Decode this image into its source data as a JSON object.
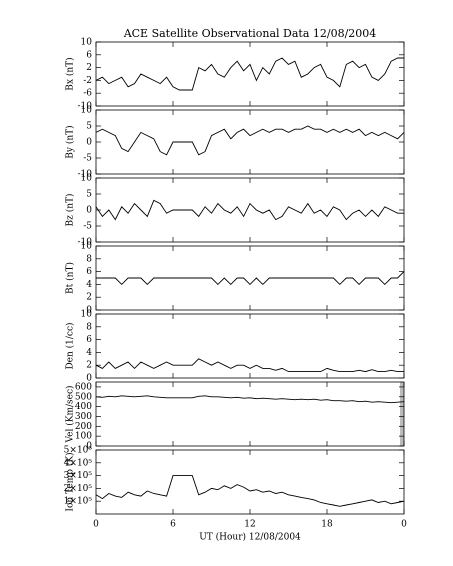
{
  "chart_data": [
    {
      "type": "line",
      "title": "ACE Satellite Observational Data   12/08/2004",
      "ylabel": "Bx (nT)",
      "color": "#000000",
      "x": [
        0,
        0.5,
        1,
        1.5,
        2,
        2.5,
        3,
        3.5,
        4,
        4.5,
        5,
        5.5,
        6,
        6.5,
        7,
        7.5,
        8,
        8.5,
        9,
        9.5,
        10,
        10.5,
        11,
        11.5,
        12,
        12.5,
        13,
        13.5,
        14,
        14.5,
        15,
        15.5,
        16,
        16.5,
        17,
        17.5,
        18,
        18.5,
        19,
        19.5,
        20,
        20.5,
        21,
        21.5,
        22,
        22.5,
        23,
        23.5,
        24
      ],
      "values": [
        -2,
        -1,
        -3,
        -2,
        -1,
        -4,
        -3,
        0,
        -1,
        -2,
        -3,
        -1,
        -4,
        -5,
        -5,
        -5,
        2,
        1,
        3,
        0,
        -1,
        2,
        4,
        1,
        3,
        -2,
        2,
        0,
        4,
        5,
        3,
        4,
        -1,
        0,
        2,
        3,
        -1,
        -2,
        -4,
        3,
        4,
        2,
        3,
        -1,
        -2,
        0,
        4,
        5,
        5
      ],
      "xlim": [
        0,
        24
      ],
      "xticks": [
        0,
        6,
        12,
        18,
        24
      ],
      "ylim": [
        -10,
        10
      ],
      "yticks": [
        -10,
        -6,
        -2,
        2,
        6,
        10
      ]
    },
    {
      "type": "line",
      "ylabel": "By (nT)",
      "color": "#000000",
      "x": [
        0,
        0.5,
        1,
        1.5,
        2,
        2.5,
        3,
        3.5,
        4,
        4.5,
        5,
        5.5,
        6,
        6.5,
        7,
        7.5,
        8,
        8.5,
        9,
        9.5,
        10,
        10.5,
        11,
        11.5,
        12,
        12.5,
        13,
        13.5,
        14,
        14.5,
        15,
        15.5,
        16,
        16.5,
        17,
        17.5,
        18,
        18.5,
        19,
        19.5,
        20,
        20.5,
        21,
        21.5,
        22,
        22.5,
        23,
        23.5,
        24
      ],
      "values": [
        3,
        4,
        3,
        2,
        -2,
        -3,
        0,
        3,
        2,
        1,
        -3,
        -4,
        0,
        0,
        0,
        0,
        -4,
        -3,
        2,
        3,
        4,
        1,
        3,
        4,
        2,
        3,
        4,
        3,
        4,
        4,
        3,
        4,
        4,
        5,
        4,
        4,
        3,
        4,
        3,
        4,
        3,
        4,
        2,
        3,
        2,
        3,
        2,
        1,
        3
      ],
      "xlim": [
        0,
        24
      ],
      "xticks": [
        0,
        6,
        12,
        18,
        24
      ],
      "ylim": [
        -10,
        10
      ],
      "yticks": [
        -10,
        -5,
        0,
        5,
        10
      ]
    },
    {
      "type": "line",
      "ylabel": "Bz (nT)",
      "color": "#000000",
      "x": [
        0,
        0.5,
        1,
        1.5,
        2,
        2.5,
        3,
        3.5,
        4,
        4.5,
        5,
        5.5,
        6,
        6.5,
        7,
        7.5,
        8,
        8.5,
        9,
        9.5,
        10,
        10.5,
        11,
        11.5,
        12,
        12.5,
        13,
        13.5,
        14,
        14.5,
        15,
        15.5,
        16,
        16.5,
        17,
        17.5,
        18,
        18.5,
        19,
        19.5,
        20,
        20.5,
        21,
        21.5,
        22,
        22.5,
        23,
        23.5,
        24
      ],
      "values": [
        1,
        -2,
        0,
        -3,
        1,
        -1,
        2,
        0,
        -2,
        3,
        2,
        -1,
        0,
        0,
        0,
        0,
        -2,
        1,
        -1,
        2,
        0,
        -1,
        1,
        -2,
        2,
        0,
        -1,
        0,
        -3,
        -2,
        1,
        0,
        -1,
        2,
        -1,
        0,
        -2,
        1,
        0,
        -3,
        -1,
        0,
        -2,
        0,
        -2,
        1,
        0,
        -1,
        -1
      ],
      "xlim": [
        0,
        24
      ],
      "xticks": [
        0,
        6,
        12,
        18,
        24
      ],
      "ylim": [
        -10,
        10
      ],
      "yticks": [
        -10,
        -5,
        0,
        5,
        10
      ]
    },
    {
      "type": "line",
      "ylabel": "Bt (nT)",
      "color": "#000000",
      "x": [
        0,
        0.5,
        1,
        1.5,
        2,
        2.5,
        3,
        3.5,
        4,
        4.5,
        5,
        5.5,
        6,
        6.5,
        7,
        7.5,
        8,
        8.5,
        9,
        9.5,
        10,
        10.5,
        11,
        11.5,
        12,
        12.5,
        13,
        13.5,
        14,
        14.5,
        15,
        15.5,
        16,
        16.5,
        17,
        17.5,
        18,
        18.5,
        19,
        19.5,
        20,
        20.5,
        21,
        21.5,
        22,
        22.5,
        23,
        23.5,
        24
      ],
      "values": [
        5,
        5,
        5,
        5,
        4,
        5,
        5,
        5,
        4,
        5,
        5,
        5,
        5,
        5,
        5,
        5,
        5,
        5,
        5,
        4,
        5,
        4,
        5,
        5,
        4,
        5,
        4,
        5,
        5,
        5,
        5,
        5,
        5,
        5,
        5,
        5,
        5,
        5,
        4,
        5,
        5,
        4,
        5,
        5,
        5,
        4,
        5,
        5,
        6
      ],
      "xlim": [
        0,
        24
      ],
      "xticks": [
        0,
        6,
        12,
        18,
        24
      ],
      "ylim": [
        0,
        10
      ],
      "yticks": [
        0,
        2,
        4,
        6,
        8,
        10
      ]
    },
    {
      "type": "line",
      "ylabel": "Den (1/cc)",
      "color": "#000000",
      "x": [
        0,
        0.5,
        1,
        1.5,
        2,
        2.5,
        3,
        3.5,
        4,
        4.5,
        5,
        5.5,
        6,
        6.5,
        7,
        7.5,
        8,
        8.5,
        9,
        9.5,
        10,
        10.5,
        11,
        11.5,
        12,
        12.5,
        13,
        13.5,
        14,
        14.5,
        15,
        15.5,
        16,
        16.5,
        17,
        17.5,
        18,
        18.5,
        19,
        19.5,
        20,
        20.5,
        21,
        21.5,
        22,
        22.5,
        23,
        23.5,
        24
      ],
      "values": [
        2,
        1.5,
        2.5,
        1.5,
        2,
        2.5,
        1.5,
        2.5,
        2,
        1.5,
        2,
        2.5,
        2,
        2,
        2,
        2,
        3,
        2.5,
        2,
        2.5,
        2,
        1.5,
        2,
        2,
        1.5,
        2,
        1.5,
        1.5,
        1.2,
        1.5,
        1,
        1,
        1,
        1,
        1,
        1,
        1.5,
        1.2,
        1,
        1,
        1,
        1.2,
        1,
        1.3,
        1,
        1,
        1.2,
        1,
        1
      ],
      "xlim": [
        0,
        24
      ],
      "xticks": [
        0,
        6,
        12,
        18,
        24
      ],
      "ylim": [
        0,
        10
      ],
      "yticks": [
        0,
        2,
        4,
        6,
        8,
        10
      ]
    },
    {
      "type": "line",
      "ylabel": "Vel (Km/sec)",
      "color": "#000000",
      "x": [
        0,
        0.5,
        1,
        1.5,
        2,
        2.5,
        3,
        3.5,
        4,
        4.5,
        5,
        5.5,
        6,
        6.5,
        7,
        7.5,
        8,
        8.5,
        9,
        9.5,
        10,
        10.5,
        11,
        11.5,
        12,
        12.5,
        13,
        13.5,
        14,
        14.5,
        15,
        15.5,
        16,
        16.5,
        17,
        17.5,
        18,
        18.5,
        19,
        19.5,
        20,
        20.5,
        21,
        21.5,
        22,
        22.5,
        23,
        23.5,
        24
      ],
      "values": [
        500,
        495,
        505,
        500,
        510,
        505,
        500,
        505,
        510,
        500,
        495,
        490,
        490,
        490,
        490,
        490,
        505,
        510,
        500,
        500,
        495,
        490,
        495,
        485,
        490,
        480,
        485,
        480,
        475,
        480,
        475,
        470,
        475,
        470,
        475,
        465,
        470,
        460,
        460,
        455,
        460,
        450,
        455,
        445,
        450,
        445,
        440,
        445,
        450
      ],
      "xlim": [
        0,
        24
      ],
      "xticks": [
        0,
        6,
        12,
        18,
        24
      ],
      "ylim": [
        0,
        650
      ],
      "yticks": [
        0,
        100,
        200,
        300,
        400,
        500,
        600
      ]
    },
    {
      "type": "line",
      "ylabel": "Ion Temp (K)",
      "xlabel": "UT (Hour)  12/08/2004",
      "color": "#000000",
      "x": [
        0,
        0.5,
        1,
        1.5,
        2,
        2.5,
        3,
        3.5,
        4,
        4.5,
        5,
        5.5,
        6,
        6.5,
        7,
        7.5,
        8,
        8.5,
        9,
        9.5,
        10,
        10.5,
        11,
        11.5,
        12,
        12.5,
        13,
        13.5,
        14,
        14.5,
        15,
        15.5,
        16,
        16.5,
        17,
        17.5,
        18,
        18.5,
        19,
        19.5,
        20,
        20.5,
        21,
        21.5,
        22,
        22.5,
        23,
        23.5,
        24
      ],
      "values": [
        150000,
        120000,
        160000,
        140000,
        130000,
        170000,
        150000,
        140000,
        180000,
        160000,
        150000,
        140000,
        300000,
        300000,
        300000,
        300000,
        150000,
        170000,
        200000,
        190000,
        220000,
        200000,
        230000,
        210000,
        180000,
        190000,
        170000,
        180000,
        160000,
        170000,
        150000,
        140000,
        130000,
        120000,
        110000,
        90000,
        80000,
        70000,
        60000,
        70000,
        80000,
        90000,
        100000,
        110000,
        90000,
        100000,
        80000,
        90000,
        100000
      ],
      "xlim": [
        0,
        24
      ],
      "xticks": [
        0,
        6,
        12,
        18,
        {
          "value": 24,
          "label": "0"
        }
      ],
      "ylim": [
        0,
        500000
      ],
      "yticks": [
        {
          "value": 100000,
          "label": "1×10⁵"
        },
        {
          "value": 200000,
          "label": "2×10⁵"
        },
        {
          "value": 300000,
          "label": "3×10⁵"
        },
        {
          "value": 400000,
          "label": "4×10⁵"
        },
        {
          "value": 500000,
          "label": "5×10⁵"
        }
      ]
    }
  ]
}
